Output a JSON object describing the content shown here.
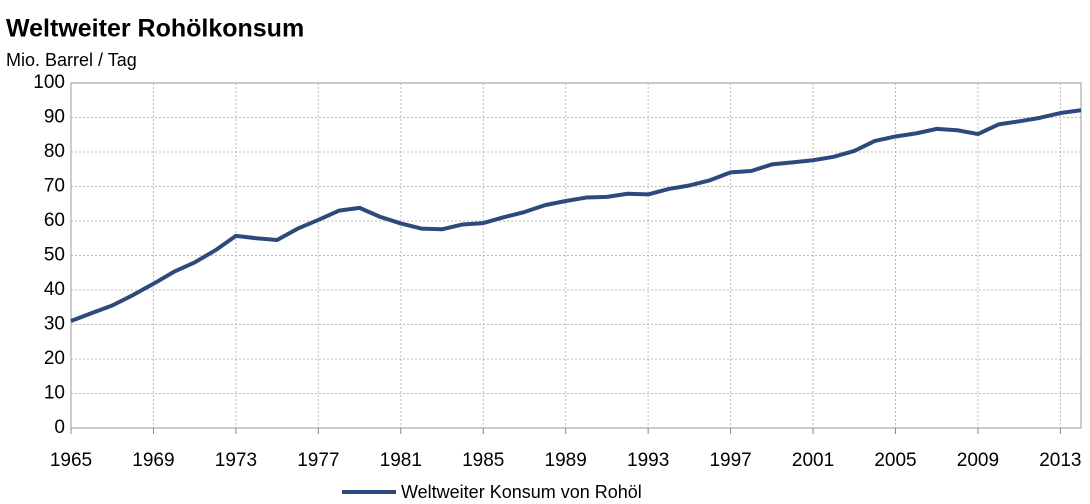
{
  "chart_data": {
    "type": "line",
    "title": "Weltweiter Rohölkonsum",
    "y_label": "Mio. Barrel / Tag",
    "x": [
      1965,
      1966,
      1967,
      1968,
      1969,
      1970,
      1971,
      1972,
      1973,
      1974,
      1975,
      1976,
      1977,
      1978,
      1979,
      1980,
      1981,
      1982,
      1983,
      1984,
      1985,
      1986,
      1987,
      1988,
      1989,
      1990,
      1991,
      1992,
      1993,
      1994,
      1995,
      1996,
      1997,
      1998,
      1999,
      2000,
      2001,
      2002,
      2003,
      2004,
      2005,
      2006,
      2007,
      2008,
      2009,
      2010,
      2011,
      2012,
      2013,
      2014
    ],
    "series": [
      {
        "name": "Weltweiter Konsum von Rohöl",
        "color": "#2e4a7d",
        "values": [
          31,
          33.3,
          35.5,
          38.5,
          41.8,
          45.3,
          48,
          51.5,
          55.7,
          55,
          54.5,
          57.8,
          60.3,
          63,
          63.8,
          61.2,
          59.3,
          57.8,
          57.6,
          59,
          59.4,
          61.1,
          62.6,
          64.6,
          65.8,
          66.8,
          67,
          67.9,
          67.7,
          69.3,
          70.3,
          71.8,
          74.1,
          74.5,
          76.4,
          77,
          77.6,
          78.6,
          80.3,
          83.2,
          84.5,
          85.4,
          86.7,
          86.3,
          85.2,
          88,
          88.9,
          89.9,
          91.3,
          92.1
        ]
      }
    ],
    "xlim": [
      1965,
      2014
    ],
    "xticks": [
      1965,
      1969,
      1973,
      1977,
      1981,
      1985,
      1989,
      1993,
      1997,
      2001,
      2005,
      2009,
      2013
    ],
    "ylim": [
      0,
      100
    ],
    "yticks": [
      0,
      10,
      20,
      30,
      40,
      50,
      60,
      70,
      80,
      90,
      100
    ],
    "grid": true,
    "legend": "bottom"
  }
}
